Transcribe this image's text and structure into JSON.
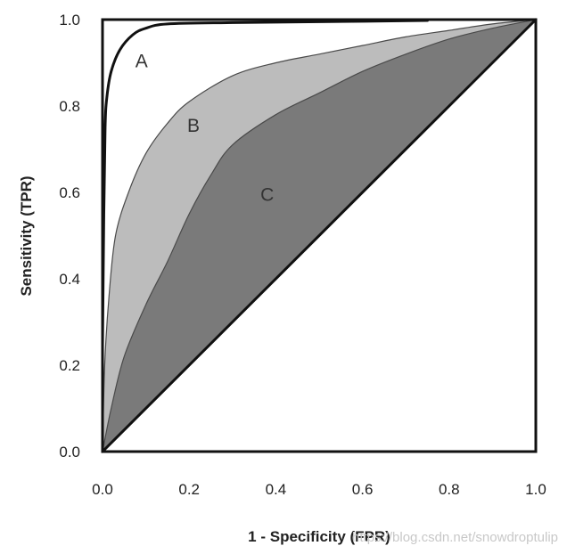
{
  "chart_data": {
    "type": "area",
    "title": "",
    "xlabel": "1 - Specificity (FPR)",
    "ylabel": "Sensitivity (TPR)",
    "xlim": [
      0,
      1
    ],
    "ylim": [
      0,
      1
    ],
    "x_ticks": [
      "0.0",
      "0.2",
      "0.4",
      "0.6",
      "0.8",
      "1.0"
    ],
    "y_ticks": [
      "0.0",
      "0.2",
      "0.4",
      "0.6",
      "0.8",
      "1.0"
    ],
    "grid": false,
    "legend": "none",
    "series": [
      {
        "name": "A",
        "style": "line",
        "color": "#111111",
        "points": [
          [
            0.0,
            0.24
          ],
          [
            0.003,
            0.55
          ],
          [
            0.006,
            0.75
          ],
          [
            0.01,
            0.82
          ],
          [
            0.02,
            0.88
          ],
          [
            0.04,
            0.93
          ],
          [
            0.07,
            0.965
          ],
          [
            0.1,
            0.98
          ],
          [
            0.15,
            0.99
          ],
          [
            0.3,
            0.993
          ],
          [
            0.5,
            0.995
          ],
          [
            0.75,
            0.998
          ]
        ]
      },
      {
        "name": "B",
        "style": "area",
        "color": "#bcbcbc",
        "points": [
          [
            0.0,
            0.0
          ],
          [
            0.005,
            0.2
          ],
          [
            0.015,
            0.36
          ],
          [
            0.03,
            0.5
          ],
          [
            0.06,
            0.6
          ],
          [
            0.1,
            0.69
          ],
          [
            0.15,
            0.76
          ],
          [
            0.2,
            0.81
          ],
          [
            0.3,
            0.87
          ],
          [
            0.4,
            0.9
          ],
          [
            0.5,
            0.92
          ],
          [
            0.6,
            0.94
          ],
          [
            0.7,
            0.96
          ],
          [
            0.8,
            0.975
          ],
          [
            0.9,
            0.99
          ],
          [
            1.0,
            1.0
          ]
        ]
      },
      {
        "name": "C",
        "style": "area",
        "color": "#7a7a7a",
        "points": [
          [
            0.0,
            0.0
          ],
          [
            0.02,
            0.1
          ],
          [
            0.05,
            0.22
          ],
          [
            0.1,
            0.34
          ],
          [
            0.15,
            0.44
          ],
          [
            0.2,
            0.55
          ],
          [
            0.25,
            0.64
          ],
          [
            0.3,
            0.71
          ],
          [
            0.4,
            0.78
          ],
          [
            0.5,
            0.83
          ],
          [
            0.6,
            0.88
          ],
          [
            0.7,
            0.92
          ],
          [
            0.8,
            0.955
          ],
          [
            0.9,
            0.98
          ],
          [
            1.0,
            1.0
          ]
        ]
      },
      {
        "name": "diagonal",
        "style": "line",
        "color": "#111111",
        "points": [
          [
            0.0,
            0.0
          ],
          [
            1.0,
            1.0
          ]
        ]
      }
    ],
    "annotations": [
      {
        "text": "A",
        "x": 0.09,
        "y": 0.89
      },
      {
        "text": "B",
        "x": 0.21,
        "y": 0.74
      },
      {
        "text": "C",
        "x": 0.38,
        "y": 0.58
      }
    ],
    "watermark": "https://blog.csdn.net/snowdroptulip"
  }
}
